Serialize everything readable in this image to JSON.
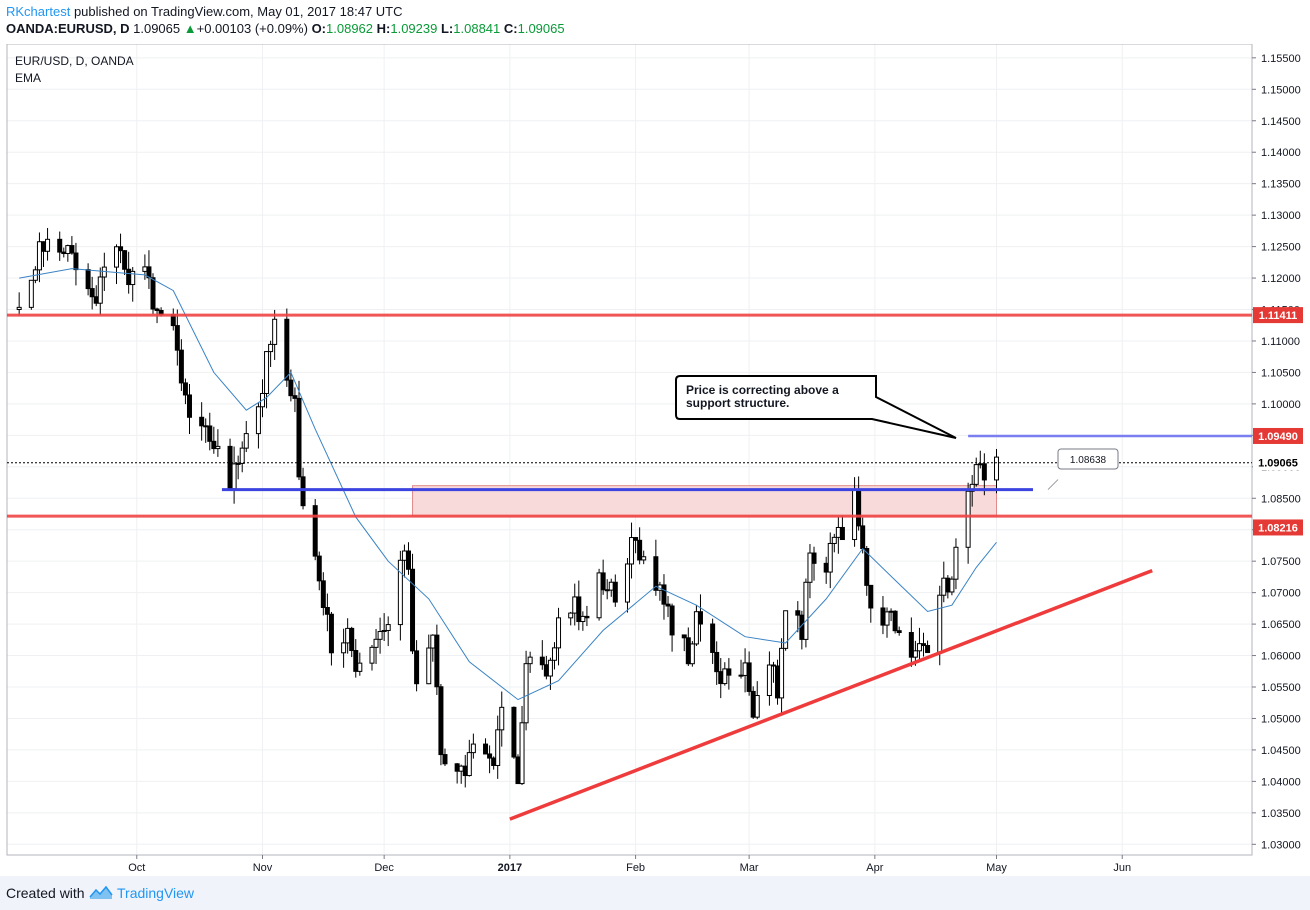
{
  "header": {
    "author": "RKchartest",
    "published": "published on TradingView.com, May 01, 2017 18:47 UTC",
    "symbol": "OANDA:EURUSD, D",
    "last": "1.09065",
    "change": "+0.00103 (+0.09%)",
    "o_label": "O:",
    "o_value": "1.08962",
    "h_label": "H:",
    "h_value": "1.09239",
    "l_label": "L:",
    "l_value": "1.08841",
    "c_label": "C:",
    "c_value": "1.09065"
  },
  "legend": {
    "title": "EUR/USD, D, OANDA",
    "indicator": "EMA"
  },
  "annotation": {
    "line1": "Price is correcting above a",
    "line2": "support structure.",
    "pointer_label": "1.08638"
  },
  "price_labels": {
    "upper_resistance": "1.11411",
    "zone_top": "1.09490",
    "last": "1.09065",
    "zone_bottom": "1.08216"
  },
  "colors": {
    "up": "#000000",
    "down": "#000000",
    "ema": "#3a83c5",
    "resistance": "#ef4444",
    "support": "#3c44e0",
    "zone": "#f8dada",
    "trend": "#ef3b3b"
  },
  "footer": {
    "created": "Created with",
    "brand": "TradingView"
  },
  "chart_data": {
    "type": "candlestick",
    "title": "EUR/USD, D, OANDA",
    "indicator": "EMA",
    "ylim": [
      1.03,
      1.155
    ],
    "y_ticks": [
      "1.15500",
      "1.15000",
      "1.14500",
      "1.14000",
      "1.13500",
      "1.13000",
      "1.12500",
      "1.12000",
      "1.11500",
      "1.11000",
      "1.10500",
      "1.10000",
      "1.09500",
      "1.09000",
      "1.08500",
      "1.08000",
      "1.07500",
      "1.07000",
      "1.06500",
      "1.06000",
      "1.05500",
      "1.05000",
      "1.04500",
      "1.04000",
      "1.03500",
      "1.03000"
    ],
    "x_ticks": [
      {
        "label": "Oct",
        "date": "2016-10-01"
      },
      {
        "label": "Nov",
        "date": "2016-11-01"
      },
      {
        "label": "Dec",
        "date": "2016-12-01"
      },
      {
        "label": "2017",
        "date": "2017-01-01"
      },
      {
        "label": "Feb",
        "date": "2017-02-01"
      },
      {
        "label": "Mar",
        "date": "2017-03-01"
      },
      {
        "label": "Apr",
        "date": "2017-04-01"
      },
      {
        "label": "May",
        "date": "2017-05-01"
      },
      {
        "label": "Jun",
        "date": "2017-06-01"
      }
    ],
    "x_range": [
      "2016-09-01",
      "2017-06-30"
    ],
    "price_path": [
      [
        "2016-09-02",
        1.115
      ],
      [
        "2016-09-08",
        1.126
      ],
      [
        "2016-09-15",
        1.123
      ],
      [
        "2016-09-20",
        1.1165
      ],
      [
        "2016-09-26",
        1.124
      ],
      [
        "2016-09-29",
        1.1205
      ],
      [
        "2016-10-03",
        1.122
      ],
      [
        "2016-10-05",
        1.116
      ],
      [
        "2016-10-07",
        1.114
      ],
      [
        "2016-10-10",
        1.1125
      ],
      [
        "2016-10-12",
        1.104
      ],
      [
        "2016-10-14",
        1.098
      ],
      [
        "2016-10-18",
        1.097
      ],
      [
        "2016-10-20",
        1.093
      ],
      [
        "2016-10-24",
        1.088
      ],
      [
        "2016-10-26",
        1.09
      ],
      [
        "2016-10-28",
        1.097
      ],
      [
        "2016-10-31",
        1.098
      ],
      [
        "2016-11-02",
        1.107
      ],
      [
        "2016-11-04",
        1.113
      ],
      [
        "2016-11-07",
        1.104
      ],
      [
        "2016-11-09",
        1.102
      ],
      [
        "2016-11-10",
        1.09
      ],
      [
        "2016-11-11",
        1.085
      ],
      [
        "2016-11-14",
        1.076
      ],
      [
        "2016-11-16",
        1.069
      ],
      [
        "2016-11-18",
        1.062
      ],
      [
        "2016-11-22",
        1.063
      ],
      [
        "2016-11-24",
        1.058
      ],
      [
        "2016-11-28",
        1.062
      ],
      [
        "2016-11-30",
        1.065
      ],
      [
        "2016-12-02",
        1.066
      ],
      [
        "2016-12-05",
        1.075
      ],
      [
        "2016-12-07",
        1.075
      ],
      [
        "2016-12-08",
        1.062
      ],
      [
        "2016-12-09",
        1.056
      ],
      [
        "2016-12-13",
        1.064
      ],
      [
        "2016-12-15",
        1.044
      ],
      [
        "2016-12-19",
        1.04
      ],
      [
        "2016-12-22",
        1.044
      ],
      [
        "2016-12-26",
        1.045
      ],
      [
        "2016-12-28",
        1.042
      ],
      [
        "2016-12-30",
        1.051
      ],
      [
        "2017-01-03",
        1.041
      ],
      [
        "2017-01-05",
        1.059
      ],
      [
        "2017-01-09",
        1.057
      ],
      [
        "2017-01-11",
        1.059
      ],
      [
        "2017-01-13",
        1.065
      ],
      [
        "2017-01-17",
        1.068
      ],
      [
        "2017-01-19",
        1.066
      ],
      [
        "2017-01-23",
        1.073
      ],
      [
        "2017-01-25",
        1.071
      ],
      [
        "2017-01-27",
        1.069
      ],
      [
        "2017-01-31",
        1.078
      ],
      [
        "2017-02-02",
        1.076
      ],
      [
        "2017-02-06",
        1.072
      ],
      [
        "2017-02-08",
        1.069
      ],
      [
        "2017-02-10",
        1.065
      ],
      [
        "2017-02-14",
        1.06
      ],
      [
        "2017-02-16",
        1.066
      ],
      [
        "2017-02-20",
        1.061
      ],
      [
        "2017-02-22",
        1.055
      ],
      [
        "2017-02-24",
        1.058
      ],
      [
        "2017-02-28",
        1.058
      ],
      [
        "2017-03-02",
        1.051
      ],
      [
        "2017-03-06",
        1.059
      ],
      [
        "2017-03-08",
        1.055
      ],
      [
        "2017-03-10",
        1.067
      ],
      [
        "2017-03-14",
        1.064
      ],
      [
        "2017-03-16",
        1.076
      ],
      [
        "2017-03-20",
        1.075
      ],
      [
        "2017-03-22",
        1.08
      ],
      [
        "2017-03-24",
        1.08
      ],
      [
        "2017-03-27",
        1.085
      ],
      [
        "2017-03-29",
        1.076
      ],
      [
        "2017-03-31",
        1.068
      ],
      [
        "2017-04-04",
        1.066
      ],
      [
        "2017-04-06",
        1.065
      ],
      [
        "2017-04-10",
        1.06
      ],
      [
        "2017-04-12",
        1.061
      ],
      [
        "2017-04-14",
        1.061
      ],
      [
        "2017-04-18",
        1.071
      ],
      [
        "2017-04-20",
        1.072
      ],
      [
        "2017-04-24",
        1.086
      ],
      [
        "2017-04-26",
        1.089
      ],
      [
        "2017-04-28",
        1.089
      ],
      [
        "2017-05-01",
        1.0907
      ]
    ],
    "ema": [
      [
        "2016-09-02",
        1.12
      ],
      [
        "2016-09-15",
        1.1215
      ],
      [
        "2016-10-03",
        1.1205
      ],
      [
        "2016-10-10",
        1.118
      ],
      [
        "2016-10-20",
        1.105
      ],
      [
        "2016-10-28",
        1.099
      ],
      [
        "2016-11-02",
        1.101
      ],
      [
        "2016-11-08",
        1.105
      ],
      [
        "2016-11-14",
        1.096
      ],
      [
        "2016-11-24",
        1.082
      ],
      [
        "2016-12-02",
        1.075
      ],
      [
        "2016-12-12",
        1.069
      ],
      [
        "2016-12-22",
        1.059
      ],
      [
        "2017-01-03",
        1.053
      ],
      [
        "2017-01-13",
        1.056
      ],
      [
        "2017-01-24",
        1.064
      ],
      [
        "2017-02-06",
        1.071
      ],
      [
        "2017-02-16",
        1.068
      ],
      [
        "2017-02-28",
        1.063
      ],
      [
        "2017-03-10",
        1.062
      ],
      [
        "2017-03-20",
        1.069
      ],
      [
        "2017-03-29",
        1.077
      ],
      [
        "2017-04-06",
        1.072
      ],
      [
        "2017-04-14",
        1.067
      ],
      [
        "2017-04-20",
        1.068
      ],
      [
        "2017-04-26",
        1.074
      ],
      [
        "2017-05-01",
        1.078
      ]
    ],
    "levels": [
      {
        "name": "upper resistance",
        "price": 1.11411
      },
      {
        "name": "support",
        "price": 1.08638
      },
      {
        "name": "lower support",
        "price": 1.08216
      },
      {
        "name": "recent high",
        "price": 1.0949
      }
    ],
    "zone": {
      "from": "2016-12-08",
      "to": "2017-05-01",
      "low": 1.08216,
      "high": 1.087
    },
    "trendline": [
      [
        "2017-01-01",
        1.034
      ],
      [
        "2017-06-01",
        1.0735
      ]
    ],
    "annotation": {
      "text": "Price is correcting above a support structure.",
      "value": 1.08638
    }
  }
}
